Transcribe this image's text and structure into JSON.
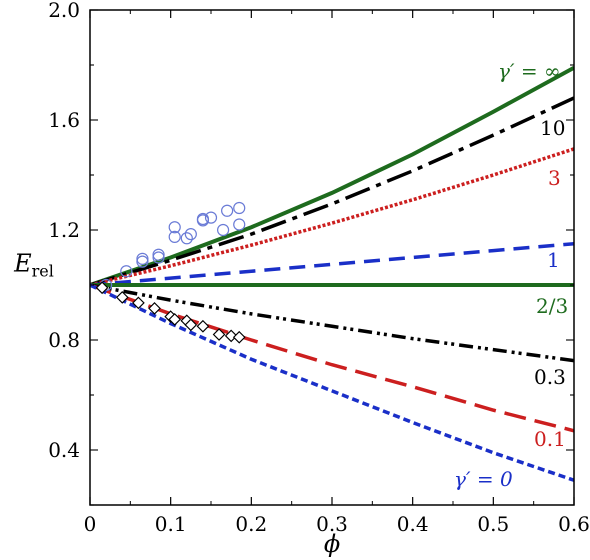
{
  "chart_data": {
    "type": "line",
    "title": "",
    "xlabel": "ϕ",
    "ylabel": {
      "main": "E",
      "sub": "rel"
    },
    "xlim": [
      0,
      0.6
    ],
    "ylim": [
      0.2,
      2.0
    ],
    "xticks": [
      0,
      0.1,
      0.2,
      0.3,
      0.4,
      0.5,
      0.6
    ],
    "xtick_labels": [
      "0",
      "0.1",
      "0.2",
      "0.3",
      "0.4",
      "0.5",
      "0.6"
    ],
    "yticks": [
      0.4,
      0.8,
      1.2,
      1.6,
      2.0
    ],
    "ytick_labels": [
      "0.4",
      "0.8",
      "1.2",
      "1.6",
      "2.0"
    ],
    "grid": false,
    "legend": "inline labels at right end of curves",
    "series": [
      {
        "name": "γ′ = ∞",
        "label": "γ′ = ∞",
        "color": "#1e6b1e",
        "dash": "solid",
        "x": [
          0,
          0.1,
          0.2,
          0.3,
          0.4,
          0.5,
          0.6
        ],
        "y": [
          1.0,
          1.1,
          1.21,
          1.335,
          1.475,
          1.63,
          1.79
        ]
      },
      {
        "name": "10",
        "label": "10",
        "color": "#000000",
        "dash": "dashdot",
        "x": [
          0,
          0.1,
          0.2,
          0.3,
          0.4,
          0.5,
          0.6
        ],
        "y": [
          1.0,
          1.09,
          1.185,
          1.295,
          1.415,
          1.545,
          1.68
        ]
      },
      {
        "name": "3",
        "label": "3",
        "color": "#cc1f1f",
        "dash": "dotted",
        "x": [
          0,
          0.1,
          0.2,
          0.3,
          0.4,
          0.5,
          0.6
        ],
        "y": [
          1.0,
          1.07,
          1.145,
          1.225,
          1.31,
          1.4,
          1.495
        ]
      },
      {
        "name": "1",
        "label": "1",
        "color": "#1a2fc8",
        "dash": "dashed",
        "x": [
          0,
          0.1,
          0.2,
          0.3,
          0.4,
          0.5,
          0.6
        ],
        "y": [
          1.0,
          1.025,
          1.05,
          1.075,
          1.1,
          1.125,
          1.15
        ]
      },
      {
        "name": "2/3",
        "label": "2/3",
        "color": "#1e6b1e",
        "dash": "solid",
        "x": [
          0,
          0.6
        ],
        "y": [
          1.0,
          1.0
        ]
      },
      {
        "name": "0.3",
        "label": "0.3",
        "color": "#000000",
        "dash": "dashdotdot",
        "x": [
          0,
          0.1,
          0.2,
          0.3,
          0.4,
          0.5,
          0.6
        ],
        "y": [
          1.0,
          0.945,
          0.895,
          0.85,
          0.805,
          0.765,
          0.725
        ]
      },
      {
        "name": "0.1",
        "label": "0.1",
        "color": "#cc1f1f",
        "dash": "longdash",
        "x": [
          0,
          0.1,
          0.2,
          0.3,
          0.4,
          0.5,
          0.6
        ],
        "y": [
          1.0,
          0.895,
          0.8,
          0.71,
          0.63,
          0.545,
          0.47
        ]
      },
      {
        "name": "γ′ = 0",
        "label": "γ′ = 0",
        "color": "#1a2fc8",
        "dash": "shortdash",
        "x": [
          0,
          0.1,
          0.2,
          0.3,
          0.4,
          0.5,
          0.6
        ],
        "y": [
          1.0,
          0.86,
          0.73,
          0.615,
          0.5,
          0.39,
          0.29
        ]
      }
    ],
    "markers": [
      {
        "shape": "circle",
        "color": "#6a7bd6",
        "x": [
          0.02,
          0.045,
          0.065,
          0.065,
          0.085,
          0.085,
          0.105,
          0.105,
          0.12,
          0.125,
          0.14,
          0.14,
          0.15,
          0.165,
          0.17,
          0.185,
          0.185
        ],
        "y": [
          1.0,
          1.05,
          1.085,
          1.095,
          1.1,
          1.11,
          1.175,
          1.21,
          1.17,
          1.185,
          1.24,
          1.235,
          1.245,
          1.2,
          1.27,
          1.28,
          1.22
        ]
      },
      {
        "shape": "diamond",
        "color": "#000000",
        "x": [
          0.015,
          0.04,
          0.06,
          0.08,
          0.1,
          0.105,
          0.12,
          0.125,
          0.14,
          0.16,
          0.175,
          0.185
        ],
        "y": [
          0.99,
          0.955,
          0.935,
          0.915,
          0.885,
          0.875,
          0.87,
          0.855,
          0.85,
          0.82,
          0.815,
          0.81
        ]
      }
    ]
  }
}
